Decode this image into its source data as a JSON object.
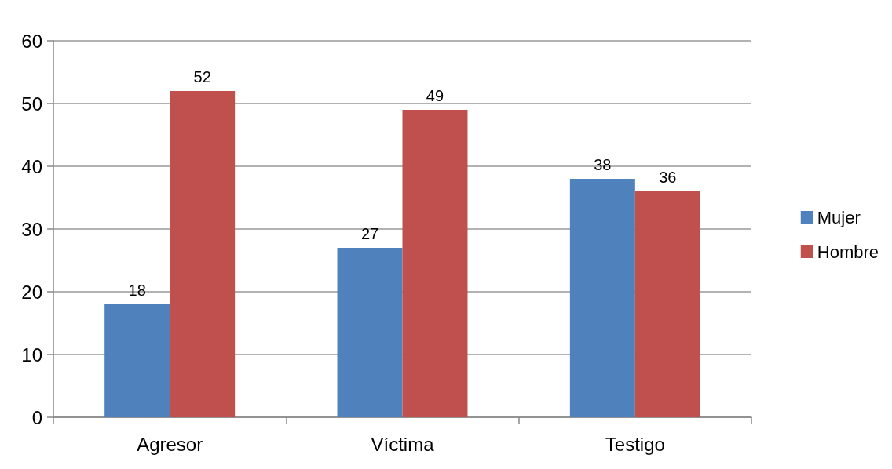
{
  "chart_data": {
    "type": "bar",
    "categories": [
      "Agresor",
      "Víctima",
      "Testigo"
    ],
    "series": [
      {
        "name": "Mujer",
        "color": "#4f81bd",
        "values": [
          18,
          27,
          38
        ]
      },
      {
        "name": "Hombre",
        "color": "#c0504d",
        "values": [
          52,
          49,
          36
        ]
      }
    ],
    "ylim": [
      0,
      60
    ],
    "yticks": [
      0,
      10,
      20,
      30,
      40,
      50,
      60
    ],
    "grid": "y",
    "legend": "right",
    "data_labels": true
  }
}
